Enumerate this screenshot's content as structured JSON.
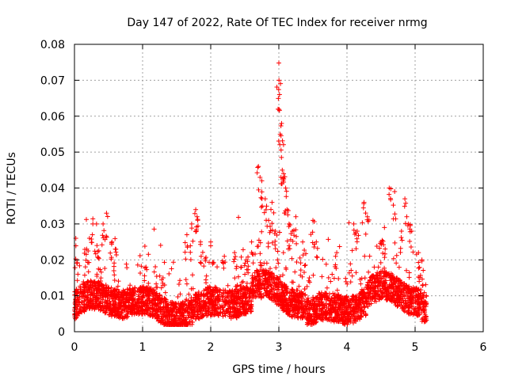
{
  "chart_data": {
    "type": "scatter",
    "title": "Day 147 of 2022, Rate Of TEC Index for receiver nrmg",
    "xlabel": "GPS time / hours",
    "ylabel": "ROTI / TECUs",
    "xlim": [
      0,
      6
    ],
    "ylim": [
      0,
      0.08
    ],
    "xticks": [
      "0",
      "1",
      "2",
      "3",
      "4",
      "5",
      "6"
    ],
    "yticks": [
      "0",
      "0.01",
      "0.02",
      "0.03",
      "0.04",
      "0.05",
      "0.06",
      "0.07",
      "0.08"
    ],
    "grid": true,
    "marker": "+",
    "color": "#ff0000",
    "x_data_end": 5.17,
    "series": [
      {
        "name": "ROTI",
        "note": "Dense band of points mostly between 0.003 and 0.015 TECU/s across 0–5.17 h; notable peaks listed below",
        "x": [
          0.02,
          0.05,
          0.18,
          0.22,
          0.27,
          0.33,
          0.42,
          0.47,
          0.55,
          0.6,
          0.85,
          1.05,
          1.3,
          1.65,
          1.72,
          1.78,
          1.8,
          1.85,
          2.0,
          2.2,
          2.35,
          2.45,
          2.52,
          2.6,
          2.7,
          2.75,
          2.8,
          2.85,
          2.9,
          2.95,
          2.98,
          3.0,
          3.01,
          3.02,
          3.04,
          3.05,
          3.07,
          3.1,
          3.12,
          3.15,
          3.2,
          3.25,
          3.35,
          3.5,
          3.55,
          3.85,
          4.1,
          4.15,
          4.25,
          4.3,
          4.5,
          4.55,
          4.62,
          4.7,
          4.8,
          4.85,
          4.9,
          4.95,
          5.05,
          5.1
        ],
        "y": [
          0.026,
          0.016,
          0.023,
          0.026,
          0.03,
          0.024,
          0.03,
          0.033,
          0.025,
          0.023,
          0.012,
          0.018,
          0.015,
          0.027,
          0.03,
          0.034,
          0.032,
          0.025,
          0.025,
          0.021,
          0.022,
          0.018,
          0.02,
          0.025,
          0.046,
          0.042,
          0.037,
          0.031,
          0.036,
          0.028,
          0.02,
          0.0748,
          0.066,
          0.055,
          0.058,
          0.045,
          0.044,
          0.04,
          0.034,
          0.03,
          0.028,
          0.032,
          0.025,
          0.031,
          0.025,
          0.022,
          0.03,
          0.028,
          0.036,
          0.032,
          0.025,
          0.029,
          0.04,
          0.039,
          0.028,
          0.037,
          0.03,
          0.028,
          0.022,
          0.02
        ]
      }
    ]
  }
}
